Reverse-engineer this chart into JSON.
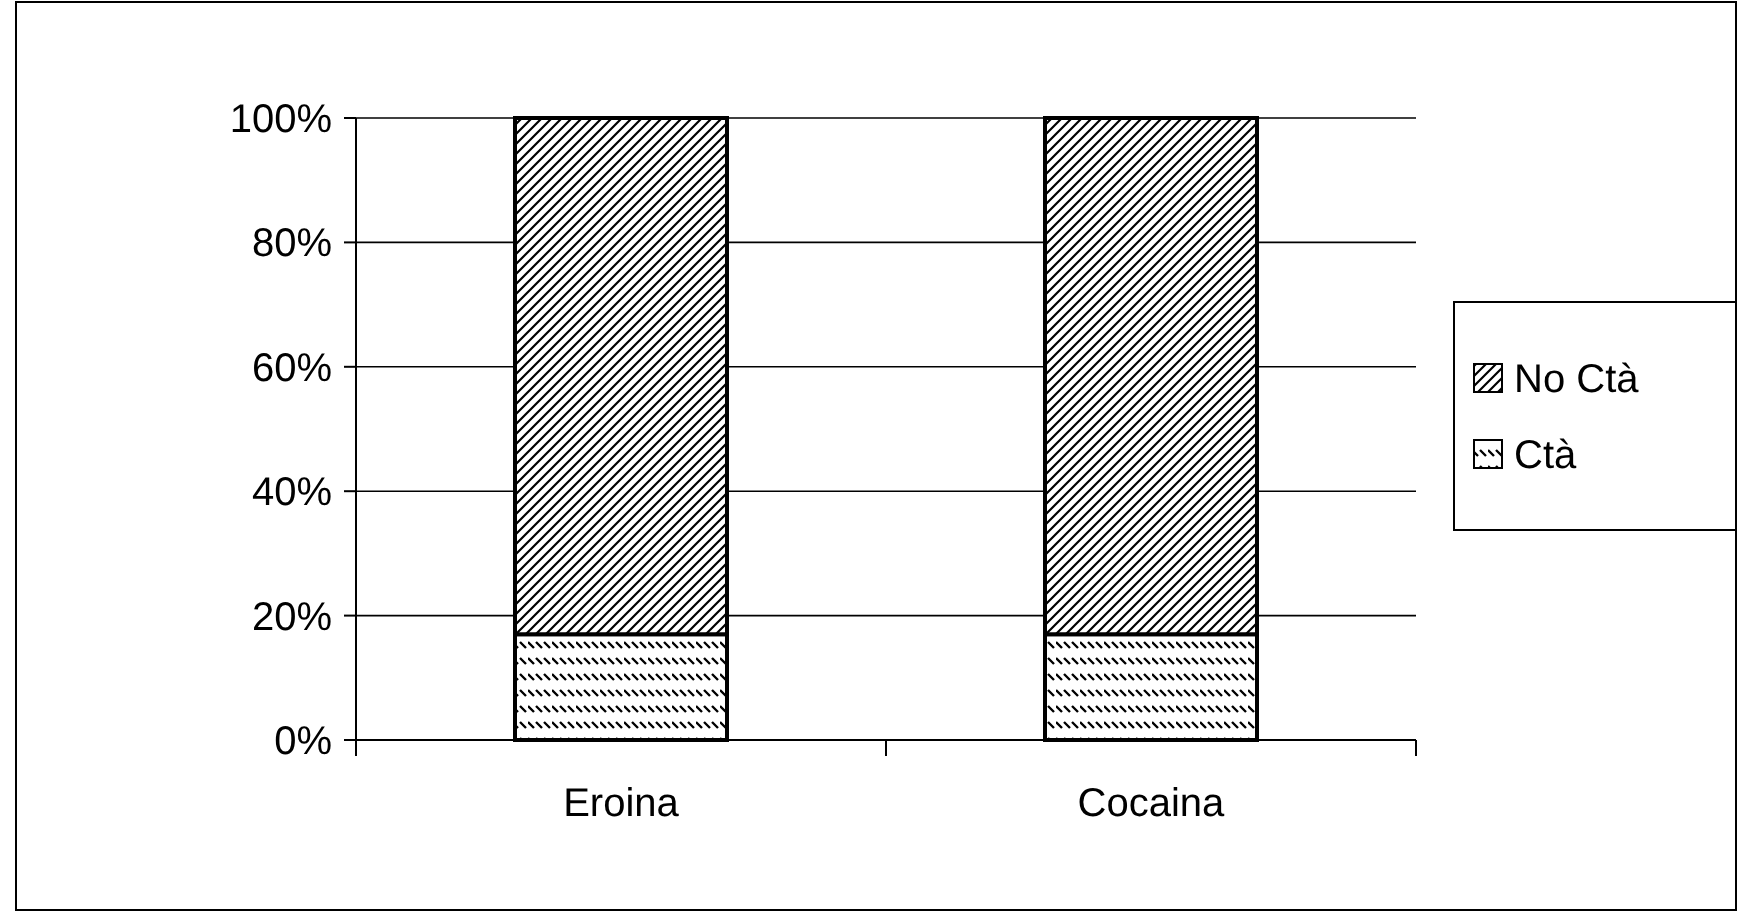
{
  "chart_data": {
    "type": "bar",
    "stacked": true,
    "categories": [
      "Eroina",
      "Cocaina"
    ],
    "series": [
      {
        "name": "Ctà",
        "color": "#000000",
        "values": [
          17,
          17
        ]
      },
      {
        "name": "No Ctà",
        "color": "#000000",
        "values": [
          83,
          83
        ]
      }
    ],
    "ylim": [
      0,
      100
    ],
    "yticks": [
      {
        "value": 0,
        "label": "0%"
      },
      {
        "value": 20,
        "label": "20%"
      },
      {
        "value": 40,
        "label": "40%"
      },
      {
        "value": 60,
        "label": "60%"
      },
      {
        "value": 80,
        "label": "80%"
      },
      {
        "value": 100,
        "label": "100%"
      }
    ],
    "grid": "y",
    "legend": "right"
  }
}
